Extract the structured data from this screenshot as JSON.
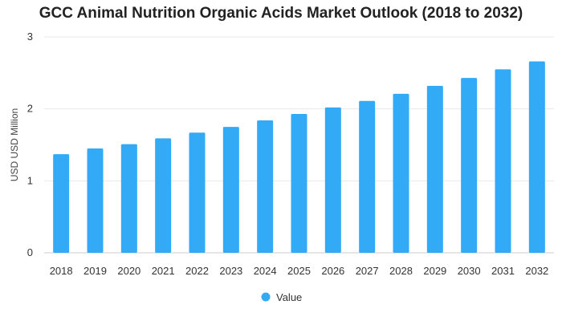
{
  "chart_data": {
    "type": "bar",
    "title": "GCC Animal Nutrition Organic Acids Market Outlook (2018 to 2032)",
    "xlabel": "",
    "ylabel": "USD USD Million",
    "categories": [
      "2018",
      "2019",
      "2020",
      "2021",
      "2022",
      "2023",
      "2024",
      "2025",
      "2026",
      "2027",
      "2028",
      "2029",
      "2030",
      "2031",
      "2032"
    ],
    "series": [
      {
        "name": "Value",
        "values": [
          1.37,
          1.45,
          1.51,
          1.59,
          1.67,
          1.75,
          1.84,
          1.93,
          2.02,
          2.11,
          2.21,
          2.32,
          2.43,
          2.55,
          2.66
        ]
      }
    ],
    "ylim": [
      0,
      3
    ],
    "yticks": [
      "0",
      "1",
      "2",
      "3"
    ],
    "grid": true,
    "legend_position": "bottom",
    "colors": {
      "bar": "#33aaf5",
      "grid": "#e8e8e8",
      "axis": "#cccccc"
    }
  }
}
